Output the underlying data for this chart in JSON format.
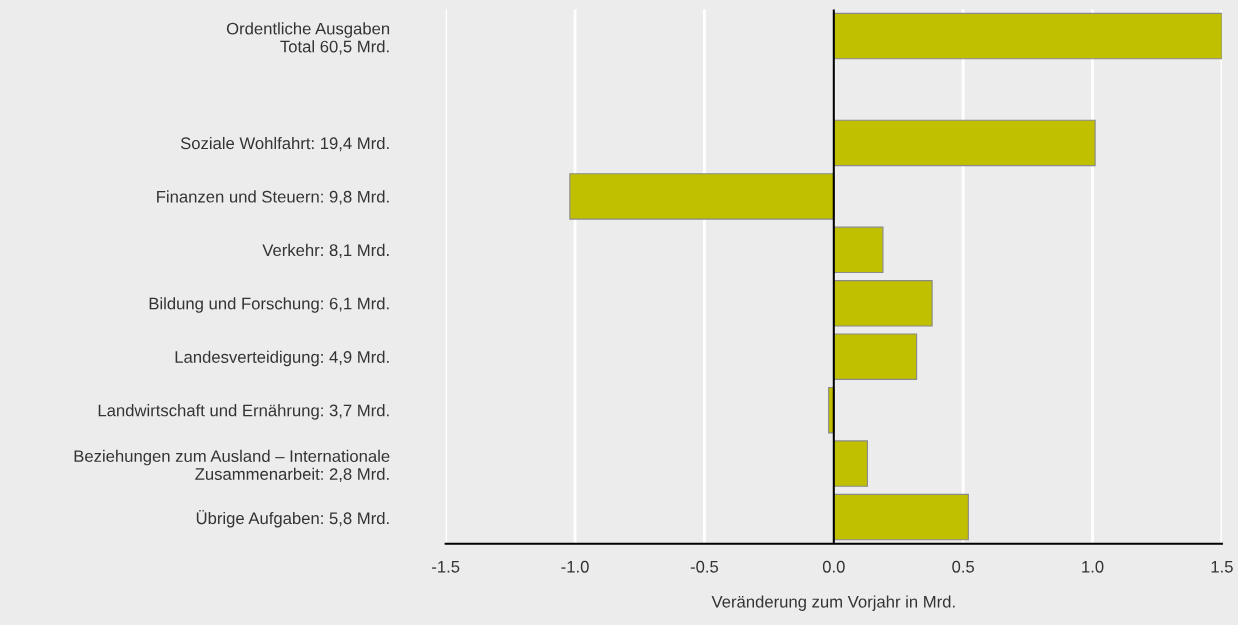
{
  "chart_data": {
    "type": "bar",
    "orientation": "horizontal",
    "categories": [
      "Ordentliche Ausgaben\nTotal 60,5 Mrd.",
      null,
      "Soziale Wohlfahrt: 19,4 Mrd.",
      "Finanzen und Steuern: 9,8 Mrd.",
      "Verkehr: 8,1 Mrd.",
      "Bildung und Forschung: 6,1 Mrd.",
      "Landesverteidigung: 4,9 Mrd.",
      "Landwirtschaft und Ernährung: 3,7 Mrd.",
      "Beziehungen zum Ausland – Internationale\nZusammenarbeit: 2,8 Mrd.",
      "Übrige Aufgaben: 5,8 Mrd."
    ],
    "values": [
      1.5,
      null,
      1.01,
      -1.02,
      0.19,
      0.38,
      0.32,
      -0.02,
      0.13,
      0.52
    ],
    "color": "#c0bf00",
    "xlim": [
      -1.5,
      1.5
    ],
    "xticks": [
      -1.5,
      {
        "value": -1,
        "label": "-1.0"
      },
      -0.5,
      {
        "value": 0,
        "label": "0.0"
      },
      0.5,
      {
        "value": 1,
        "label": "1.0"
      },
      1.5
    ],
    "xlabel": "Veränderung zum Vorjahr in Mrd.",
    "grid": "x",
    "ref_lines": [
      {
        "axis": "x",
        "value": 0,
        "color": "#000000"
      }
    ]
  }
}
